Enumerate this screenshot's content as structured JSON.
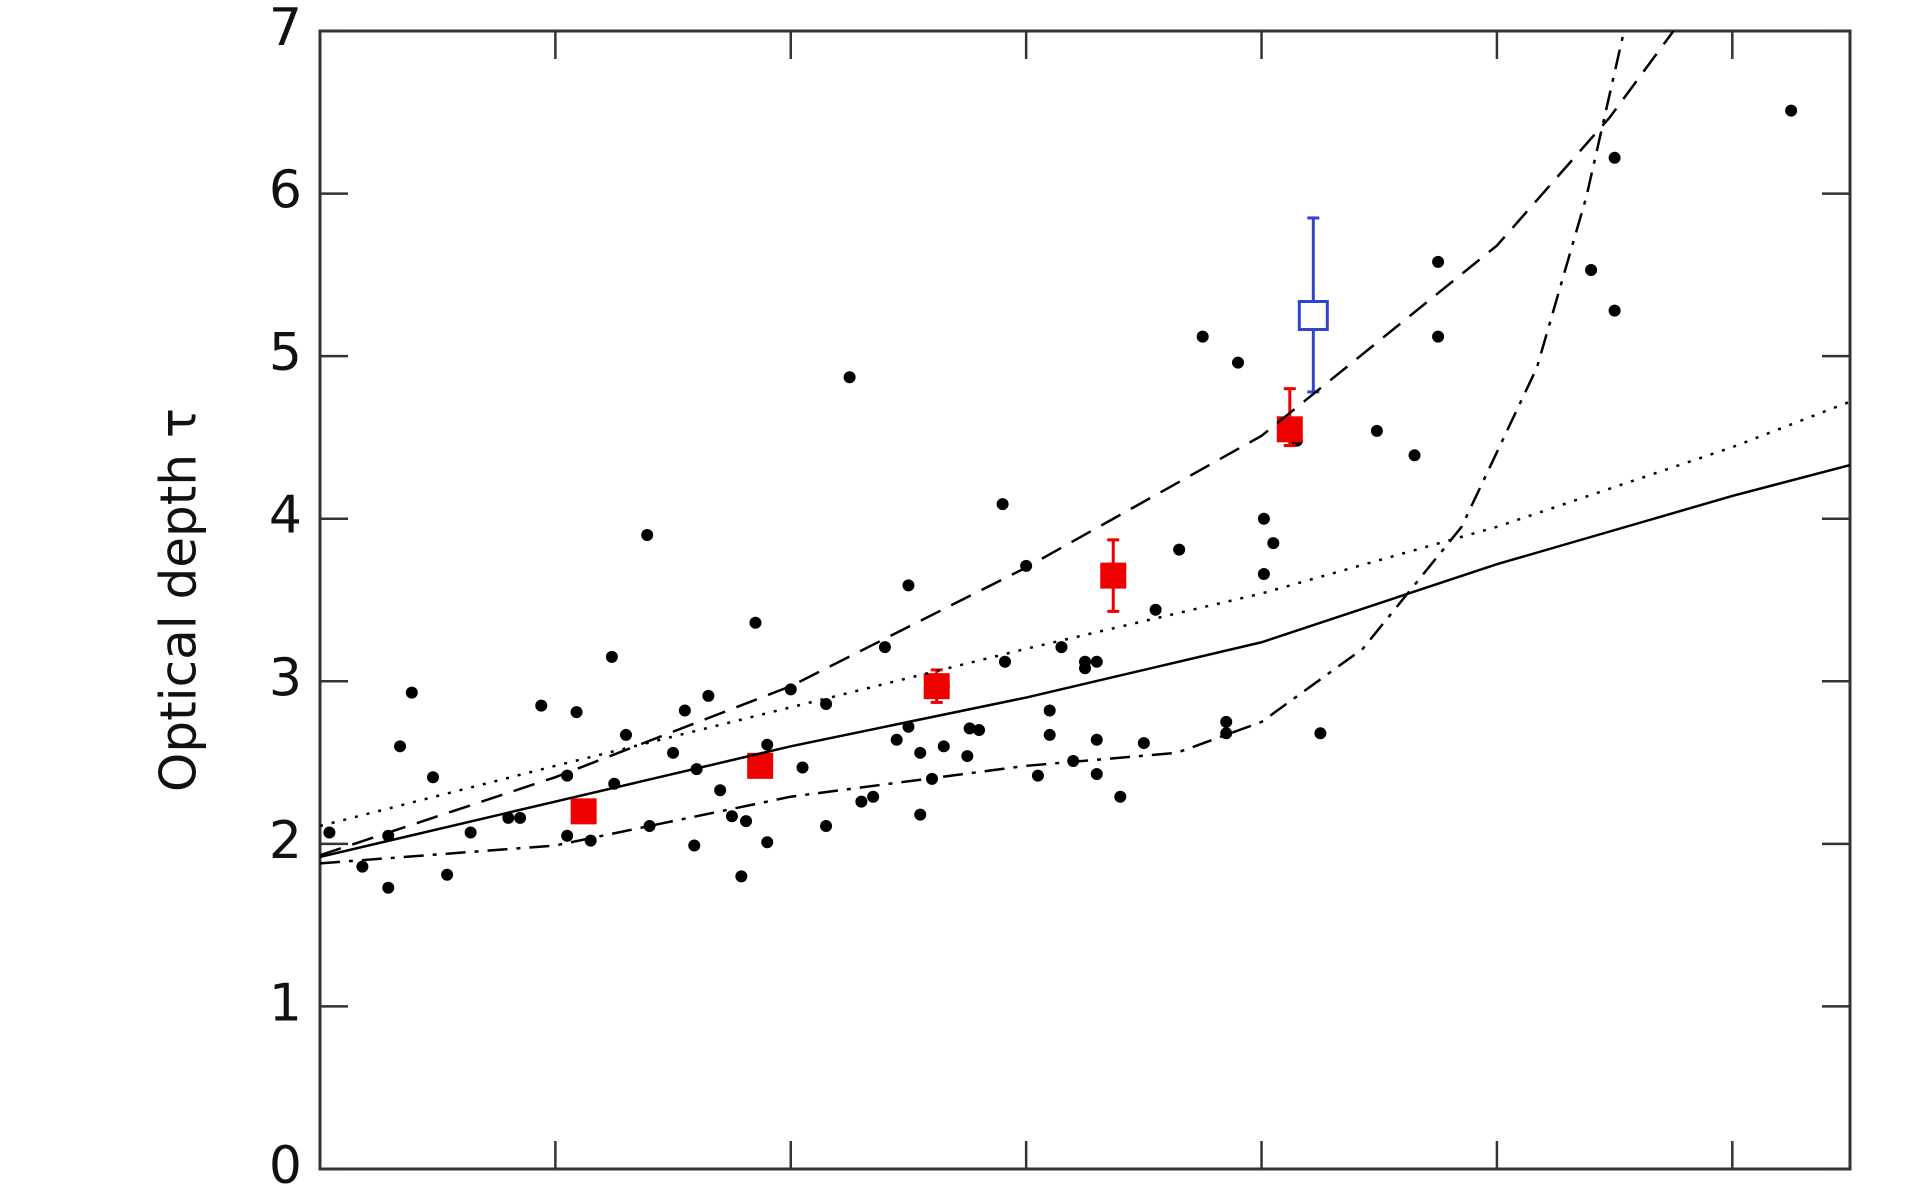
{
  "chart_data": {
    "type": "scatter",
    "y_label": "Optical depth τ",
    "xlim": [
      0,
      6.5
    ],
    "xticks": [
      1,
      2,
      3,
      4,
      5,
      6
    ],
    "ylim": [
      0,
      7
    ],
    "yticks": [
      0,
      1,
      2,
      3,
      4,
      5,
      6,
      7
    ],
    "series": [
      {
        "style": "points",
        "color": "#000000",
        "x": [
          0.04,
          0.18,
          0.29,
          0.29,
          0.34,
          0.39,
          0.48,
          0.54,
          0.64,
          0.8,
          0.85,
          0.94,
          1.05,
          1.05,
          1.09,
          1.15,
          1.24,
          1.25,
          1.3,
          1.39,
          1.4,
          1.5,
          1.55,
          1.59,
          1.6,
          1.65,
          1.7,
          1.75,
          1.79,
          1.81,
          1.85,
          1.9,
          1.9,
          2.0,
          2.05,
          2.15,
          2.15,
          2.25,
          2.3,
          2.35,
          2.4,
          2.45,
          2.5,
          2.5,
          2.55,
          2.55,
          2.6,
          2.65,
          2.65,
          2.75,
          2.76,
          2.8,
          2.9,
          2.91,
          3.0,
          3.05,
          3.1,
          3.1,
          3.15,
          3.2,
          3.25,
          3.25,
          3.3,
          3.3,
          3.3,
          3.4,
          3.5,
          3.55,
          3.65,
          3.75,
          3.85,
          3.85,
          3.9,
          4.01,
          4.01,
          4.05,
          4.15,
          4.25,
          4.49,
          4.65,
          4.75,
          4.75,
          5.4,
          5.5,
          5.5,
          6.25
        ],
        "values": [
          2.07,
          1.86,
          1.73,
          2.05,
          2.6,
          2.93,
          2.41,
          1.81,
          2.07,
          2.16,
          2.16,
          2.85,
          2.42,
          2.05,
          2.81,
          2.02,
          3.15,
          2.37,
          2.67,
          3.9,
          2.11,
          2.56,
          2.82,
          1.99,
          2.46,
          2.91,
          2.33,
          2.17,
          1.8,
          2.14,
          3.36,
          2.61,
          2.01,
          2.95,
          2.47,
          2.86,
          2.11,
          4.87,
          2.26,
          2.29,
          3.21,
          2.64,
          3.59,
          2.72,
          2.18,
          2.56,
          2.4,
          2.97,
          2.6,
          2.54,
          2.71,
          2.7,
          4.09,
          3.12,
          3.71,
          2.42,
          2.82,
          2.67,
          3.21,
          2.51,
          3.12,
          3.08,
          3.12,
          2.64,
          2.43,
          2.29,
          2.62,
          3.44,
          3.81,
          5.12,
          2.75,
          2.68,
          4.96,
          4.0,
          3.66,
          3.85,
          4.48,
          2.68,
          4.54,
          4.39,
          5.58,
          5.12,
          5.53,
          6.22,
          5.28,
          6.51
        ]
      },
      {
        "style": "square",
        "color": "#ee0000",
        "x": [
          1.12,
          1.87,
          2.62,
          3.37,
          4.12
        ],
        "values": [
          2.2,
          2.48,
          2.97,
          3.65,
          4.55
        ],
        "err_minus": [
          0.05,
          0.05,
          0.1,
          0.22,
          0.1
        ],
        "err_plus": [
          0.05,
          0.05,
          0.1,
          0.22,
          0.25
        ]
      },
      {
        "style": "open-square",
        "color": "#3344cc",
        "x": [
          4.22
        ],
        "values": [
          5.25
        ],
        "err_minus": [
          0.47
        ],
        "err_plus": [
          0.6
        ]
      },
      {
        "style": "line",
        "dash": "solid",
        "color": "#000000",
        "x": [
          0,
          1,
          2,
          3,
          4,
          5,
          6,
          6.5
        ],
        "values": [
          1.92,
          2.26,
          2.6,
          2.9,
          3.24,
          3.72,
          4.14,
          4.33
        ]
      },
      {
        "style": "line",
        "dash": "dotted",
        "color": "#000000",
        "x": [
          0,
          1,
          2,
          3,
          4,
          5,
          6,
          6.5
        ],
        "values": [
          2.11,
          2.48,
          2.84,
          3.2,
          3.54,
          3.95,
          4.44,
          4.72
        ]
      },
      {
        "style": "line",
        "dash": "dashed",
        "color": "#000000",
        "x": [
          0,
          1,
          2,
          3,
          4,
          5,
          5.48,
          5.75
        ],
        "values": [
          1.93,
          2.41,
          2.97,
          3.7,
          4.51,
          5.68,
          6.47,
          7.0
        ]
      },
      {
        "style": "line",
        "dash": "dashdot",
        "color": "#000000",
        "x": [
          0,
          1,
          2,
          3,
          3.64,
          4,
          4.43,
          4.85,
          5.17,
          5.38,
          5.54
        ],
        "values": [
          1.88,
          1.99,
          2.29,
          2.48,
          2.56,
          2.75,
          3.2,
          3.95,
          4.93,
          5.98,
          7.0
        ]
      }
    ]
  }
}
